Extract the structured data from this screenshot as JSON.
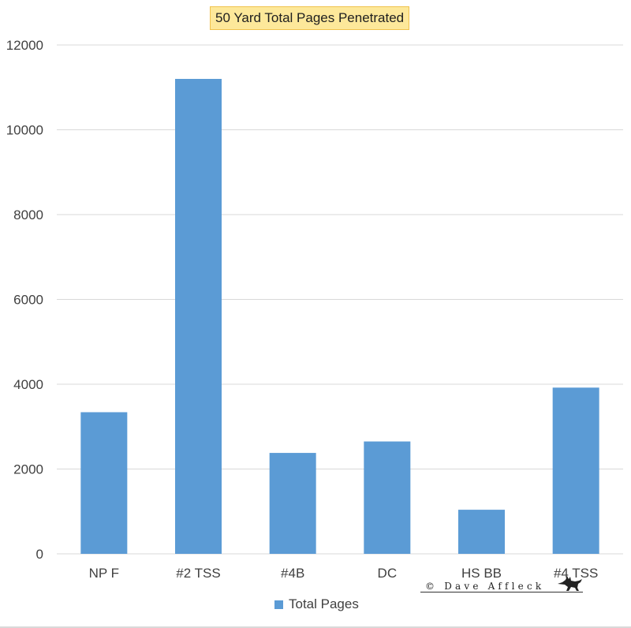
{
  "chart_data": {
    "type": "bar",
    "title": "50 Yard Total Pages Penetrated",
    "categories": [
      "NP F",
      "#2 TSS",
      "#4B",
      "DC",
      "HS BB",
      "#4 TSS"
    ],
    "series": [
      {
        "name": "Total Pages",
        "values": [
          3340,
          11200,
          2380,
          2650,
          1040,
          3920
        ]
      }
    ],
    "ylim": [
      0,
      12000
    ],
    "yticks": [
      0,
      2000,
      4000,
      6000,
      8000,
      10000,
      12000
    ],
    "grid": true,
    "legend_position": "bottom",
    "bar_color": "#5b9bd5",
    "grid_color": "#d9d9d9"
  },
  "watermark": {
    "text": "© Dave Affleck",
    "icon": "fox-icon"
  }
}
